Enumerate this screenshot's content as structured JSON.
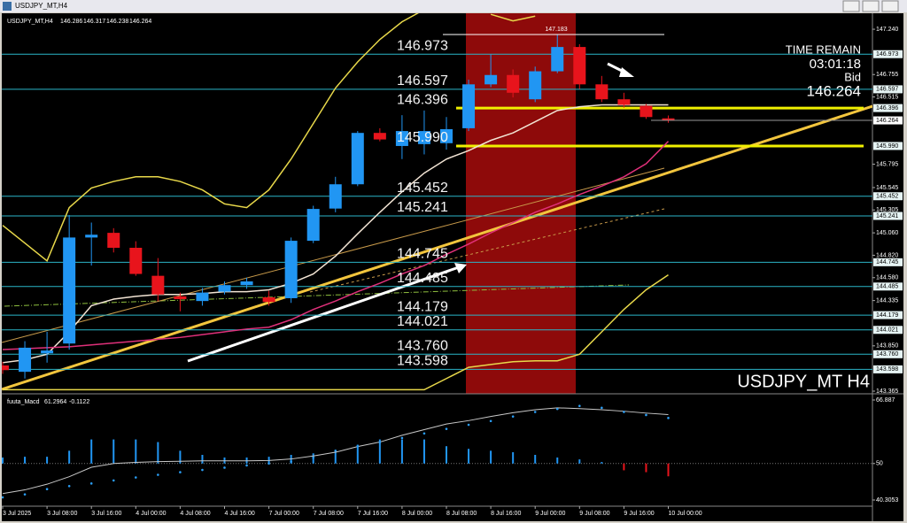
{
  "chart_data": [
    {
      "type": "candlestick",
      "title": "USDJPY_MT,H4",
      "watermark": "USDJPY_MT H4",
      "categories": [
        "3 Jul 2025",
        null,
        "3 Jul 08:00",
        null,
        "3 Jul 16:00",
        null,
        "4 Jul 00:00",
        null,
        "4 Jul 08:00",
        null,
        "4 Jul 16:00",
        null,
        "7 Jul 00:00",
        null,
        "7 Jul 08:00",
        null,
        "7 Jul 16:00",
        null,
        "8 Jul 00:00",
        null,
        "8 Jul 08:00",
        null,
        "8 Jul 16:00",
        null,
        "9 Jul 00:00",
        null,
        "9 Jul 08:00",
        null,
        "9 Jul 16:00",
        null,
        "10 Jul 00:00"
      ],
      "open": [
        143.64,
        143.572,
        143.77,
        143.875,
        145.01,
        145.06,
        144.9,
        144.6,
        144.38,
        144.33,
        144.43,
        144.5,
        144.37,
        144.36,
        144.975,
        145.32,
        145.58,
        146.13,
        145.99,
        146.01,
        146.02,
        146.18,
        146.65,
        146.75,
        146.49,
        146.79,
        147.05,
        146.65,
        146.49,
        146.42,
        146.286
      ],
      "high": [
        143.68,
        143.9,
        144.0,
        145.25,
        145.17,
        145.11,
        144.97,
        144.79,
        144.42,
        144.47,
        144.54,
        144.58,
        144.44,
        145.01,
        145.35,
        145.66,
        146.15,
        146.18,
        146.32,
        146.37,
        146.3,
        146.7,
        146.97,
        146.81,
        146.84,
        147.183,
        147.08,
        146.74,
        146.56,
        146.44,
        146.317
      ],
      "low": [
        143.55,
        143.5,
        143.67,
        143.81,
        144.71,
        144.85,
        144.6,
        144.33,
        144.22,
        144.28,
        144.4,
        144.46,
        144.28,
        144.31,
        144.95,
        145.28,
        145.56,
        146.04,
        145.85,
        145.9,
        145.95,
        146.15,
        146.62,
        146.51,
        146.46,
        146.77,
        146.6,
        146.46,
        146.4,
        146.28,
        146.238
      ],
      "close": [
        143.59,
        143.83,
        143.8,
        145.01,
        145.04,
        144.9,
        144.62,
        144.4,
        144.35,
        144.42,
        144.5,
        144.54,
        144.32,
        144.975,
        145.316,
        145.58,
        146.13,
        146.06,
        146.15,
        146.15,
        146.17,
        146.65,
        146.75,
        146.56,
        146.79,
        147.05,
        146.65,
        146.49,
        146.43,
        146.3,
        146.264
      ],
      "up_color": "#2196f3",
      "down_color": "#e8141c",
      "overlays": [
        {
          "color": "#e8d84a",
          "values": [
            145.14,
            144.95,
            144.76,
            145.33,
            145.54,
            145.61,
            145.66,
            145.66,
            145.61,
            145.52,
            145.37,
            145.33,
            145.52,
            145.85,
            146.23,
            146.61,
            146.89,
            147.13,
            147.32,
            147.45,
            null,
            null,
            147.4,
            147.33,
            147.38,
            null,
            null,
            null,
            null,
            null,
            null
          ]
        },
        {
          "color": "#e8d84a",
          "values": [
            143.38,
            143.38,
            143.38,
            143.38,
            143.38,
            143.38,
            143.38,
            143.38,
            143.38,
            143.38,
            143.38,
            143.38,
            143.38,
            143.38,
            143.38,
            143.38,
            143.38,
            143.38,
            143.38,
            143.38,
            143.5,
            143.62,
            143.65,
            143.68,
            143.69,
            143.69,
            143.76,
            144.0,
            144.24,
            144.45,
            144.61
          ]
        },
        {
          "color": "#f2e4d4",
          "values": [
            143.67,
            143.7,
            143.76,
            144.0,
            144.28,
            144.35,
            144.38,
            144.4,
            144.4,
            144.41,
            144.43,
            144.43,
            144.45,
            144.52,
            144.62,
            144.81,
            145.05,
            145.28,
            145.5,
            145.7,
            145.85,
            145.94,
            146.05,
            146.13,
            146.25,
            146.37,
            146.41,
            146.43,
            146.43,
            146.43,
            146.43
          ]
        },
        {
          "color": "#e0307a",
          "values": [
            143.81,
            143.82,
            143.83,
            143.84,
            143.86,
            143.88,
            143.9,
            143.92,
            143.94,
            143.97,
            144.0,
            144.03,
            144.05,
            144.13,
            144.24,
            144.33,
            144.43,
            144.52,
            144.62,
            144.71,
            144.83,
            144.94,
            145.06,
            145.17,
            145.28,
            145.37,
            145.47,
            145.56,
            145.66,
            145.8,
            146.04
          ]
        }
      ],
      "ylim": [
        143.346,
        147.411
      ],
      "yticks": [
        {
          "value": 147.24,
          "label": "147.240"
        },
        146.755,
        146.515,
        145.795,
        145.545,
        145.305,
        {
          "value": 145.06,
          "label": "145.060"
        },
        {
          "value": 144.82,
          "label": "144.820"
        },
        {
          "value": 144.58,
          "label": "144.580"
        },
        144.335,
        {
          "value": 143.85,
          "label": "143.850"
        },
        143.365
      ],
      "levels": [
        146.973,
        146.597,
        146.396,
        {
          "value": 145.99,
          "label": "145.990"
        },
        145.452,
        145.241,
        144.745,
        144.485,
        144.179,
        144.021,
        {
          "value": 143.76,
          "label": "143.760"
        },
        143.598
      ],
      "level_colors": [
        "#2bb5c8",
        "#2bb5c8",
        "#f0f000",
        "#f0f000",
        "#2bb5c8",
        "#2bb5c8",
        "#2bb5c8",
        "#2bb5c8",
        "#2bb5c8",
        "#2bb5c8",
        "#2bb5c8",
        "#2bb5c8"
      ],
      "high_label": 147.183,
      "info": {
        "time_remain_label": "TIME REMAIN",
        "time_remain": "03:01:18",
        "bid_label": "Bid",
        "bid": 146.264
      },
      "grid": false
    },
    {
      "type": "macd",
      "title": "fuuta_Macd",
      "header_values": [
        61.2964,
        -0.1122
      ],
      "values": [
        51.6,
        51.8,
        51.8,
        53.4,
        56.4,
        56.4,
        56.4,
        55.7,
        53.4,
        52.3,
        51.6,
        51.6,
        51.8,
        52.3,
        52.7,
        53.4,
        55.0,
        56.4,
        56.4,
        56.4,
        54.6,
        53.9,
        53.4,
        53.0,
        52.3,
        51.6,
        51.1,
        50.4,
        48.2,
        47.7,
        46.6
      ],
      "line": [
        42.0,
        43.0,
        44.5,
        46.5,
        49.0,
        50.0,
        50.3,
        50.5,
        50.6,
        50.7,
        50.7,
        50.7,
        50.8,
        51.2,
        52.0,
        53.0,
        54.5,
        55.7,
        57.5,
        59.0,
        60.5,
        61.4,
        62.5,
        63.5,
        64.3,
        64.8,
        64.6,
        64.3,
        63.9,
        63.4,
        63.0
      ],
      "signal": [
        41.0,
        41.8,
        43.2,
        44.0,
        44.7,
        45.5,
        46.3,
        47.0,
        47.7,
        48.3,
        48.9,
        49.5,
        50.0,
        50.5,
        51.6,
        53.4,
        54.6,
        55.7,
        56.8,
        58.0,
        59.2,
        60.3,
        61.3,
        62.5,
        63.7,
        64.5,
        65.3,
        64.8,
        63.7,
        62.9,
        62.1
      ],
      "baseline": 50,
      "up_color": "#2196f3",
      "down_color": "#e8141c",
      "line_color": "#c8c8c8",
      "signal_color": "#2a9df4",
      "ylim": [
        38.66,
        68.06
      ],
      "yticks": [
        66.887,
        50,
        40.3053
      ]
    }
  ]
}
